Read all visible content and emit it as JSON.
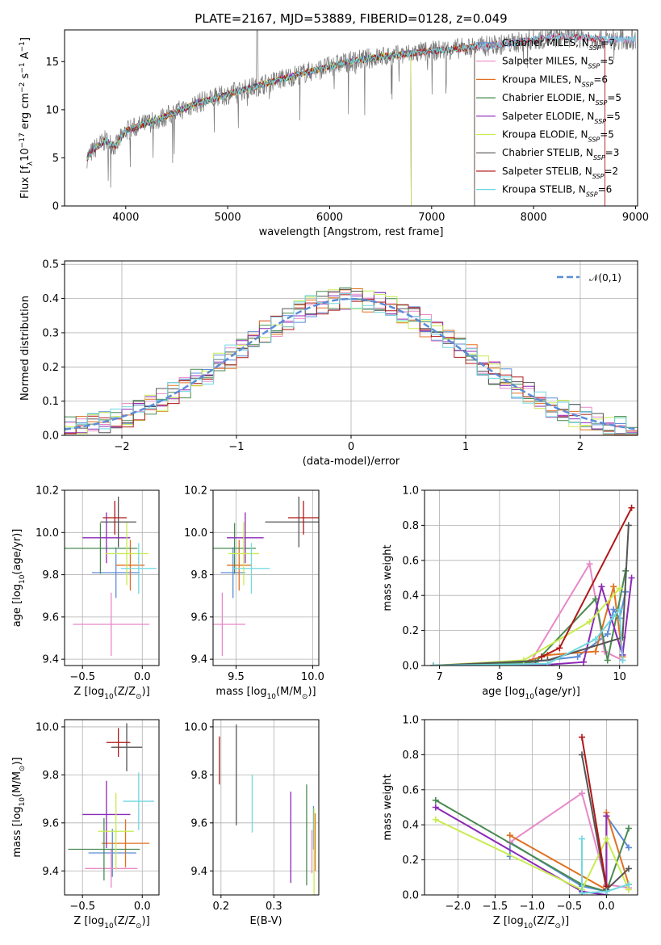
{
  "title": "PLATE=2167, MJD=53889, FIBERID=0128, z=0.049",
  "colors": {
    "Chabrier MILES": "#5b8cd6",
    "Salpeter MILES": "#e888c8",
    "Kroupa MILES": "#e07020",
    "Chabrier ELODIE": "#4a8a52",
    "Salpeter ELODIE": "#8c28b8",
    "Kroupa ELODIE": "#c8ec50",
    "Chabrier STELIB": "#555555",
    "Salpeter STELIB": "#b01818",
    "Kroupa STELIB": "#70d8e0"
  },
  "legend_spectrum": [
    {
      "name": "Chabrier MILES",
      "pre": "Chabrier MILES, N",
      "sub": "SSP",
      "post": "=7"
    },
    {
      "name": "Salpeter MILES",
      "pre": "Salpeter MILES, N",
      "sub": "SSP",
      "post": "=5"
    },
    {
      "name": "Kroupa MILES",
      "pre": "Kroupa MILES, N",
      "sub": "SSP",
      "post": "=6"
    },
    {
      "name": "Chabrier ELODIE",
      "pre": "Chabrier ELODIE, N",
      "sub": "SSP",
      "post": "=5"
    },
    {
      "name": "Salpeter ELODIE",
      "pre": "Salpeter ELODIE, N",
      "sub": "SSP",
      "post": "=5"
    },
    {
      "name": "Kroupa ELODIE",
      "pre": "Kroupa ELODIE, N",
      "sub": "SSP",
      "post": "=5"
    },
    {
      "name": "Chabrier STELIB",
      "pre": "Chabrier STELIB, N",
      "sub": "SSP",
      "post": "=3"
    },
    {
      "name": "Salpeter STELIB",
      "pre": "Salpeter STELIB, N",
      "sub": "SSP",
      "post": "=2"
    },
    {
      "name": "Kroupa STELIB",
      "pre": "Kroupa STELIB, N",
      "sub": "SSP",
      "post": "=6"
    }
  ],
  "chart_data": [
    {
      "id": "spectrum",
      "type": "line",
      "xlabel": "wavelength [Angstrom, rest frame]",
      "ylabel": "Flux [f_λ 10^-17 erg cm^-2 s^-1 A^-1]",
      "ylabel_parts": {
        "a": "Flux [f",
        "b": "λ",
        "c": "10",
        "d": "−17",
        "e": " erg cm",
        "f": "−2",
        "g": " s",
        "h": "−1",
        "i": " A",
        "j": "−1",
        "k": "]"
      },
      "xlim": [
        3400,
        9020
      ],
      "ylim": [
        0,
        18.3
      ],
      "xticks": [
        4000,
        5000,
        6000,
        7000,
        8000,
        9000
      ],
      "yticks": [
        0,
        5,
        10,
        15
      ],
      "continuum_points": [
        [
          3620,
          5.0
        ],
        [
          3700,
          6.0
        ],
        [
          3800,
          6.8
        ],
        [
          3900,
          6.2
        ],
        [
          4000,
          7.8
        ],
        [
          4100,
          8.2
        ],
        [
          4300,
          8.9
        ],
        [
          4500,
          9.8
        ],
        [
          4700,
          10.7
        ],
        [
          4900,
          11.3
        ],
        [
          5100,
          11.9
        ],
        [
          5300,
          12.5
        ],
        [
          5500,
          13.1
        ],
        [
          5700,
          13.7
        ],
        [
          5900,
          14.2
        ],
        [
          6100,
          14.8
        ],
        [
          6300,
          15.2
        ],
        [
          6500,
          15.5
        ],
        [
          6700,
          15.7
        ],
        [
          6900,
          16.0
        ],
        [
          7100,
          16.2
        ],
        [
          7300,
          16.4
        ],
        [
          7500,
          16.6
        ],
        [
          7700,
          16.8
        ],
        [
          7900,
          17.1
        ],
        [
          8100,
          17.4
        ],
        [
          8300,
          17.6
        ],
        [
          8500,
          17.5
        ],
        [
          8700,
          17.3
        ]
      ],
      "model_ranges": [
        3620,
        9000
      ],
      "model_cutoffs": {
        "Kroupa ELODIE": 6800,
        "Chabrier ELODIE": 6800,
        "Salpeter ELODIE": 6800,
        "Chabrier STELIB": 7420,
        "Salpeter STELIB": 8700,
        "Kroupa MILES": 7420
      }
    },
    {
      "id": "residuals",
      "type": "bar",
      "xlabel": "(data-model)/error",
      "ylabel": "Normed distribution",
      "xlim": [
        -2.5,
        2.5
      ],
      "ylim": [
        0,
        0.51
      ],
      "xticks": [
        -2,
        -1,
        0,
        1,
        2
      ],
      "yticks": [
        0.0,
        0.1,
        0.2,
        0.3,
        0.4,
        0.5
      ],
      "gaussian_label": "𝒩(0,1)",
      "bin_width": 0.1
    },
    {
      "id": "age_vs_Z",
      "type": "scatter",
      "xlabel": "Z [log10(Z/Z⊙)]",
      "ylabel": "age  [log10(age/yr)]",
      "xlim": [
        -0.65,
        0.14
      ],
      "ylim": [
        9.37,
        10.2
      ],
      "xticks": [
        -0.5,
        0.0
      ],
      "yticks": [
        9.4,
        9.6,
        9.8,
        10.0,
        10.2
      ],
      "points": [
        {
          "series": "Chabrier MILES",
          "x": -0.22,
          "y": 9.81,
          "xerr": 0.2,
          "yerr": 0.12
        },
        {
          "series": "Salpeter MILES",
          "x": -0.26,
          "y": 9.565,
          "xerr": 0.32,
          "yerr": 0.15
        },
        {
          "series": "Kroupa MILES",
          "x": -0.1,
          "y": 9.845,
          "xerr": 0.12,
          "yerr": 0.12
        },
        {
          "series": "Chabrier ELODIE",
          "x": -0.35,
          "y": 9.925,
          "xerr": 0.31,
          "yerr": 0.12
        },
        {
          "series": "Salpeter ELODIE",
          "x": -0.3,
          "y": 9.975,
          "xerr": 0.2,
          "yerr": 0.12
        },
        {
          "series": "Kroupa ELODIE",
          "x": -0.13,
          "y": 9.9,
          "xerr": 0.18,
          "yerr": 0.15
        },
        {
          "series": "Chabrier STELIB",
          "x": -0.2,
          "y": 10.05,
          "xerr": 0.15,
          "yerr": 0.12
        },
        {
          "series": "Salpeter STELIB",
          "x": -0.23,
          "y": 10.07,
          "xerr": 0.1,
          "yerr": 0.08
        },
        {
          "series": "Kroupa STELIB",
          "x": -0.03,
          "y": 9.83,
          "xerr": 0.15,
          "yerr": 0.12
        }
      ]
    },
    {
      "id": "age_vs_mass",
      "type": "scatter",
      "xlabel": "mass [log10(M/M⊙)]",
      "ylabel": "",
      "xlim": [
        9.35,
        10.04
      ],
      "ylim": [
        9.37,
        10.2
      ],
      "xticks": [
        9.5,
        10.0
      ],
      "yticks": [
        9.4,
        9.6,
        9.8,
        10.0,
        10.2
      ],
      "points": [
        {
          "series": "Chabrier MILES",
          "x": 9.48,
          "y": 9.81,
          "xerr": 0.08,
          "yerr": 0.12
        },
        {
          "series": "Salpeter MILES",
          "x": 9.41,
          "y": 9.565,
          "xerr": 0.15,
          "yerr": 0.15
        },
        {
          "series": "Kroupa MILES",
          "x": 9.52,
          "y": 9.845,
          "xerr": 0.08,
          "yerr": 0.12
        },
        {
          "series": "Chabrier ELODIE",
          "x": 9.49,
          "y": 9.925,
          "xerr": 0.14,
          "yerr": 0.12
        },
        {
          "series": "Salpeter ELODIE",
          "x": 9.56,
          "y": 9.975,
          "xerr": 0.12,
          "yerr": 0.12
        },
        {
          "series": "Kroupa ELODIE",
          "x": 9.55,
          "y": 9.9,
          "xerr": 0.1,
          "yerr": 0.15
        },
        {
          "series": "Chabrier STELIB",
          "x": 9.91,
          "y": 10.05,
          "xerr": 0.22,
          "yerr": 0.12
        },
        {
          "series": "Salpeter STELIB",
          "x": 9.94,
          "y": 10.07,
          "xerr": 0.1,
          "yerr": 0.08
        },
        {
          "series": "Kroupa STELIB",
          "x": 9.6,
          "y": 9.83,
          "xerr": 0.12,
          "yerr": 0.12
        }
      ]
    },
    {
      "id": "weight_vs_age",
      "type": "line",
      "xlabel": "age  [log10(age/yr)]",
      "ylabel": "mass weight",
      "xlim": [
        6.75,
        10.3
      ],
      "ylim": [
        0,
        1.0
      ],
      "xticks": [
        7,
        8,
        9,
        10
      ],
      "yticks": [
        0.0,
        0.2,
        0.4,
        0.6,
        0.8,
        1.0
      ],
      "series": [
        {
          "name": "Chabrier MILES",
          "points": [
            [
              6.9,
              0.0
            ],
            [
              8.5,
              0.02
            ],
            [
              9.3,
              0.05
            ],
            [
              9.8,
              0.18
            ],
            [
              9.9,
              0.32
            ],
            [
              10.0,
              0.27
            ],
            [
              10.1,
              0.42
            ]
          ]
        },
        {
          "name": "Salpeter MILES",
          "points": [
            [
              6.9,
              0.0
            ],
            [
              8.5,
              0.01
            ],
            [
              9.5,
              0.58
            ],
            [
              9.75,
              0.08
            ],
            [
              10.05,
              0.03
            ]
          ]
        },
        {
          "name": "Kroupa MILES",
          "points": [
            [
              6.9,
              0.0
            ],
            [
              8.3,
              0.01
            ],
            [
              8.8,
              0.06
            ],
            [
              9.6,
              0.08
            ],
            [
              9.9,
              0.45
            ],
            [
              10.05,
              0.05
            ]
          ]
        },
        {
          "name": "Chabrier ELODIE",
          "points": [
            [
              6.9,
              0.0
            ],
            [
              8.6,
              0.02
            ],
            [
              9.6,
              0.38
            ],
            [
              9.8,
              0.03
            ],
            [
              10.1,
              0.54
            ]
          ]
        },
        {
          "name": "Salpeter ELODIE",
          "points": [
            [
              6.9,
              0.0
            ],
            [
              8.6,
              0.0
            ],
            [
              9.4,
              0.02
            ],
            [
              9.7,
              0.45
            ],
            [
              10.05,
              0.06
            ],
            [
              10.2,
              0.5
            ]
          ]
        },
        {
          "name": "Kroupa ELODIE",
          "points": [
            [
              6.9,
              0.0
            ],
            [
              8.4,
              0.03
            ],
            [
              9.5,
              0.25
            ],
            [
              10.0,
              0.44
            ]
          ]
        },
        {
          "name": "Chabrier STELIB",
          "points": [
            [
              6.9,
              0.0
            ],
            [
              8.8,
              0.03
            ],
            [
              10.05,
              0.16
            ],
            [
              10.15,
              0.8
            ]
          ]
        },
        {
          "name": "Salpeter STELIB",
          "points": [
            [
              8.7,
              0.05
            ],
            [
              9.0,
              0.1
            ],
            [
              10.2,
              0.9
            ]
          ]
        },
        {
          "name": "Kroupa STELIB",
          "points": [
            [
              6.9,
              0.0
            ],
            [
              8.8,
              0.01
            ],
            [
              9.6,
              0.15
            ],
            [
              9.9,
              0.28
            ],
            [
              10.0,
              0.32
            ],
            [
              10.05,
              0.03
            ]
          ]
        }
      ]
    },
    {
      "id": "mass_vs_Z",
      "type": "scatter",
      "xlabel": "Z [log10(Z/Z⊙)]",
      "ylabel": "mass [log10(M/M⊙)]",
      "xlim": [
        -0.65,
        0.14
      ],
      "ylim": [
        9.3,
        10.03
      ],
      "xticks": [
        -0.5,
        0.0
      ],
      "yticks": [
        9.4,
        9.6,
        9.8,
        10.0
      ],
      "points": [
        {
          "series": "Chabrier MILES",
          "x": -0.25,
          "y": 9.475,
          "xerr": 0.2,
          "yerr": 0.1
        },
        {
          "series": "Salpeter MILES",
          "x": -0.26,
          "y": 9.41,
          "xerr": 0.22,
          "yerr": 0.08
        },
        {
          "series": "Kroupa MILES",
          "x": -0.14,
          "y": 9.515,
          "xerr": 0.2,
          "yerr": 0.1
        },
        {
          "series": "Chabrier ELODIE",
          "x": -0.32,
          "y": 9.49,
          "xerr": 0.3,
          "yerr": 0.13
        },
        {
          "series": "Salpeter ELODIE",
          "x": -0.3,
          "y": 9.635,
          "xerr": 0.2,
          "yerr": 0.14
        },
        {
          "series": "Kroupa ELODIE",
          "x": -0.22,
          "y": 9.565,
          "xerr": 0.15,
          "yerr": 0.16
        },
        {
          "series": "Chabrier STELIB",
          "x": -0.13,
          "y": 9.915,
          "xerr": 0.13,
          "yerr": 0.1
        },
        {
          "series": "Salpeter STELIB",
          "x": -0.2,
          "y": 9.935,
          "xerr": 0.1,
          "yerr": 0.06
        },
        {
          "series": "Kroupa STELIB",
          "x": -0.03,
          "y": 9.69,
          "xerr": 0.13,
          "yerr": 0.12
        }
      ]
    },
    {
      "id": "mass_vs_EBV",
      "type": "scatter",
      "xlabel": "E(B-V)",
      "ylabel": "",
      "xlim": [
        0.185,
        0.385
      ],
      "ylim": [
        9.3,
        10.03
      ],
      "xticks": [
        0.2,
        0.3
      ],
      "yticks": [
        9.4,
        9.6,
        9.8,
        10.0
      ],
      "points": [
        {
          "series": "Chabrier MILES",
          "x": 0.375,
          "y": 9.58,
          "yerr": 0.09
        },
        {
          "series": "Salpeter MILES",
          "x": 0.372,
          "y": 9.48,
          "yerr": 0.09
        },
        {
          "series": "Kroupa MILES",
          "x": 0.378,
          "y": 9.52,
          "yerr": 0.12
        },
        {
          "series": "Chabrier ELODIE",
          "x": 0.362,
          "y": 9.55,
          "yerr": 0.21
        },
        {
          "series": "Salpeter ELODIE",
          "x": 0.332,
          "y": 9.54,
          "yerr": 0.19
        },
        {
          "series": "Kroupa ELODIE",
          "x": 0.376,
          "y": 9.48,
          "yerr": 0.18
        },
        {
          "series": "Chabrier STELIB",
          "x": 0.229,
          "y": 9.8,
          "yerr": 0.21
        },
        {
          "series": "Salpeter STELIB",
          "x": 0.197,
          "y": 9.86,
          "yerr": 0.1
        },
        {
          "series": "Kroupa STELIB",
          "x": 0.259,
          "y": 9.68,
          "yerr": 0.12
        }
      ]
    },
    {
      "id": "weight_vs_Z",
      "type": "line",
      "xlabel": "Z [log10(Z/Z⊙)]",
      "ylabel": "mass weight",
      "xlim": [
        -2.45,
        0.42
      ],
      "ylim": [
        0,
        1.0
      ],
      "xticks": [
        -2.0,
        -1.5,
        -1.0,
        -0.5,
        0.0
      ],
      "yticks": [
        0.0,
        0.2,
        0.4,
        0.6,
        0.8,
        1.0
      ],
      "series": [
        {
          "name": "Chabrier MILES",
          "points": [
            [
              -1.3,
              0.22
            ],
            [
              -1.3,
              0.3
            ],
            [
              -0.33,
              0.05
            ],
            [
              0.0,
              0.02
            ],
            [
              0.0,
              0.45
            ],
            [
              0.3,
              0.27
            ]
          ]
        },
        {
          "name": "Salpeter MILES",
          "points": [
            [
              -1.3,
              0.3
            ],
            [
              -0.33,
              0.58
            ],
            [
              0.0,
              0.06
            ],
            [
              0.3,
              0.04
            ]
          ]
        },
        {
          "name": "Kroupa MILES",
          "points": [
            [
              -1.3,
              0.34
            ],
            [
              0.0,
              0.03
            ],
            [
              0.0,
              0.47
            ],
            [
              0.3,
              0.06
            ]
          ]
        },
        {
          "name": "Chabrier ELODIE",
          "points": [
            [
              -2.3,
              0.54
            ],
            [
              -0.33,
              0.06
            ],
            [
              0.0,
              0.02
            ],
            [
              0.3,
              0.38
            ]
          ]
        },
        {
          "name": "Salpeter ELODIE",
          "points": [
            [
              -2.3,
              0.5
            ],
            [
              -0.33,
              0.02
            ],
            [
              0.0,
              0.0
            ],
            [
              0.0,
              0.45
            ]
          ]
        },
        {
          "name": "Kroupa ELODIE",
          "points": [
            [
              -2.3,
              0.43
            ],
            [
              -0.33,
              0.03
            ],
            [
              0.0,
              0.32
            ],
            [
              0.3,
              0.03
            ]
          ]
        },
        {
          "name": "Chabrier STELIB",
          "points": [
            [
              -0.33,
              0.8
            ],
            [
              0.0,
              0.03
            ],
            [
              0.3,
              0.15
            ]
          ]
        },
        {
          "name": "Salpeter STELIB",
          "points": [
            [
              -0.33,
              0.9
            ],
            [
              0.0,
              0.05
            ]
          ]
        },
        {
          "name": "Kroupa STELIB",
          "points": [
            [
              -0.33,
              0.32
            ],
            [
              -0.33,
              0.01
            ],
            [
              0.0,
              0.02
            ],
            [
              0.3,
              0.06
            ]
          ]
        }
      ]
    }
  ]
}
